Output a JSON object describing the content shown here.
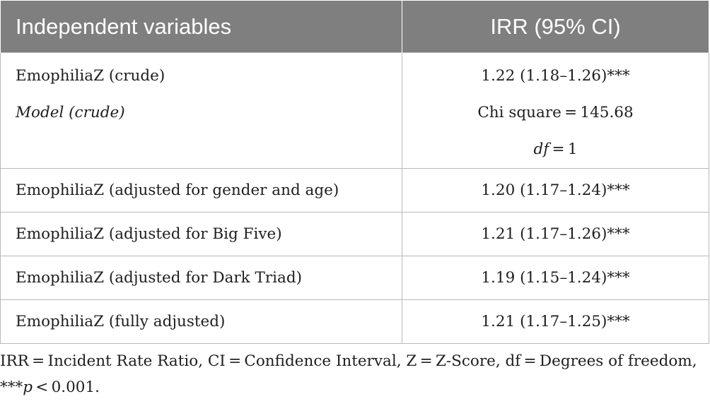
{
  "table": {
    "headers": {
      "variable": "Independent variables",
      "irr": "IRR (95% CI)"
    },
    "first_block": {
      "row_label": "EmophiliaZ (crude)",
      "row_value": "1.22 (1.18–1.26)***",
      "model_label": "Model (crude)",
      "chi_square": "Chi square = 145.68",
      "df_label": "df",
      "df_value": " = 1"
    },
    "rows": [
      {
        "label": "EmophiliaZ (adjusted for gender and age)",
        "value": "1.20 (1.17–1.24)***"
      },
      {
        "label": "EmophiliaZ (adjusted for Big Five)",
        "value": "1.21 (1.17–1.26)***"
      },
      {
        "label": "EmophiliaZ (adjusted for Dark Triad)",
        "value": "1.19 (1.15–1.24)***"
      },
      {
        "label": "EmophiliaZ (fully adjusted)",
        "value": "1.21 (1.17–1.25)***"
      }
    ]
  },
  "footnote": {
    "line1": "IRR = Incident Rate Ratio, CI = Confidence Interval, Z = Z-Score, df = Degrees of freedom,",
    "line2_prefix": "***",
    "line2_p": "p",
    "line2_suffix": " < 0.001."
  },
  "colors": {
    "header_bg": "#7f7f7f",
    "header_text": "#ffffff",
    "border": "#b9b9b9",
    "text": "#1e1e1e"
  }
}
